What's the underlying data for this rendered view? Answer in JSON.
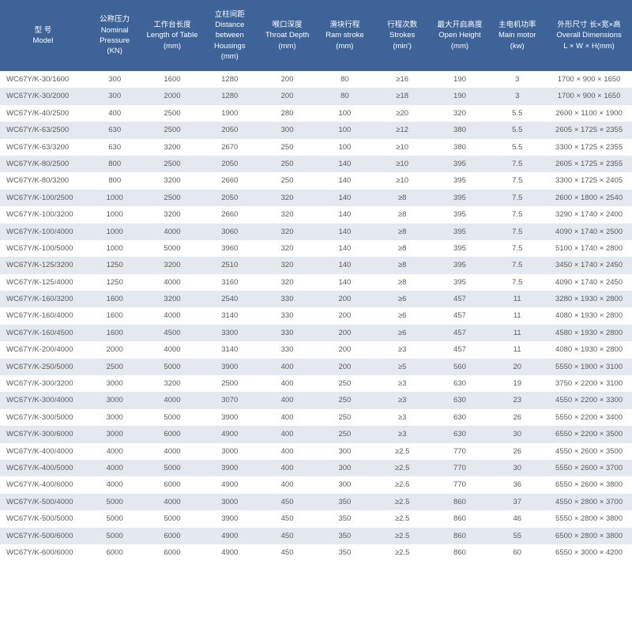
{
  "header_bg": "#3d6399",
  "header_fg": "#ffffff",
  "row_even_bg": "#ffffff",
  "row_odd_bg": "#e4e9ef",
  "cell_fg": "#5a5a5a",
  "font_size_pt": 9.5,
  "columns": [
    {
      "cn": "型 号",
      "en": "Model",
      "unit": ""
    },
    {
      "cn": "公称压力",
      "en": "Nominal Pressure",
      "unit": "(KN)"
    },
    {
      "cn": "工作台长度",
      "en": "Length of Table",
      "unit": "(mm)"
    },
    {
      "cn": "立柱间距",
      "en": "Distance between Housings",
      "unit": "(mm)"
    },
    {
      "cn": "喉口深度",
      "en": "Throat Depth",
      "unit": "(mm)"
    },
    {
      "cn": "滑块行程",
      "en": "Ram stroke",
      "unit": "(mm)"
    },
    {
      "cn": "行程次数",
      "en": "Strokes",
      "unit": "(min')"
    },
    {
      "cn": "最大开启高度",
      "en": "Open Height",
      "unit": "(mm)"
    },
    {
      "cn": "主电机功率",
      "en": "Main motor",
      "unit": "(kw)"
    },
    {
      "cn": "外形尺寸 长×宽×高",
      "en": "Overall Dimensions",
      "unit": "L × W × H(mm)"
    }
  ],
  "rows": [
    [
      "WC67Y/K-30/1600",
      "300",
      "1600",
      "1280",
      "200",
      "80",
      "≥16",
      "190",
      "3",
      "1700 × 900 × 1650"
    ],
    [
      "WC67Y/K-30/2000",
      "300",
      "2000",
      "1280",
      "200",
      "80",
      "≥18",
      "190",
      "3",
      "1700 × 900 × 1650"
    ],
    [
      "WC67Y/K-40/2500",
      "400",
      "2500",
      "1900",
      "280",
      "100",
      "≥20",
      "320",
      "5.5",
      "2600 × 1100 × 1900"
    ],
    [
      "WC67Y/K-63/2500",
      "630",
      "2500",
      "2050",
      "300",
      "100",
      "≥12",
      "380",
      "5.5",
      "2605 × 1725 × 2355"
    ],
    [
      "WC67Y/K-63/3200",
      "630",
      "3200",
      "2670",
      "250",
      "100",
      "≥10",
      "380",
      "5.5",
      "3300 × 1725 × 2355"
    ],
    [
      "WC67Y/K-80/2500",
      "800",
      "2500",
      "2050",
      "250",
      "140",
      "≥10",
      "395",
      "7.5",
      "2605 × 1725 × 2355"
    ],
    [
      "WC67Y/K-80/3200",
      "800",
      "3200",
      "2660",
      "250",
      "140",
      "≥10",
      "395",
      "7.5",
      "3300 × 1725 × 2405"
    ],
    [
      "WC67Y/K-100/2500",
      "1000",
      "2500",
      "2050",
      "320",
      "140",
      "≥8",
      "395",
      "7.5",
      "2600 × 1800 × 2540"
    ],
    [
      "WC67Y/K-100/3200",
      "1000",
      "3200",
      "2660",
      "320",
      "140",
      "≥8",
      "395",
      "7.5",
      "3290 × 1740 × 2400"
    ],
    [
      "WC67Y/K-100/4000",
      "1000",
      "4000",
      "3060",
      "320",
      "140",
      "≥8",
      "395",
      "7.5",
      "4090 × 1740 × 2500"
    ],
    [
      "WC67Y/K-100/5000",
      "1000",
      "5000",
      "3960",
      "320",
      "140",
      "≥8",
      "395",
      "7.5",
      "5100 × 1740 × 2800"
    ],
    [
      "WC67Y/K-125/3200",
      "1250",
      "3200",
      "2510",
      "320",
      "140",
      "≥8",
      "395",
      "7.5",
      "3450 × 1740 × 2450"
    ],
    [
      "WC67Y/K-125/4000",
      "1250",
      "4000",
      "3160",
      "320",
      "140",
      "≥8",
      "395",
      "7.5",
      "4090 × 1740 × 2450"
    ],
    [
      "WC67Y/K-160/3200",
      "1600",
      "3200",
      "2540",
      "330",
      "200",
      "≥6",
      "457",
      "11",
      "3280 × 1930 × 2800"
    ],
    [
      "WC67Y/K-160/4000",
      "1600",
      "4000",
      "3140",
      "330",
      "200",
      "≥6",
      "457",
      "11",
      "4080 × 1930 × 2800"
    ],
    [
      "WC67Y/K-160/4500",
      "1600",
      "4500",
      "3300",
      "330",
      "200",
      "≥6",
      "457",
      "11",
      "4580 × 1930 × 2800"
    ],
    [
      "WC67Y/K-200/4000",
      "2000",
      "4000",
      "3140",
      "330",
      "200",
      "≥3",
      "457",
      "11",
      "4080 × 1930 × 2800"
    ],
    [
      "WC67Y/K-250/5000",
      "2500",
      "5000",
      "3900",
      "400",
      "200",
      "≥5",
      "560",
      "20",
      "5550 × 1900 × 3100"
    ],
    [
      "WC67Y/K-300/3200",
      "3000",
      "3200",
      "2500",
      "400",
      "250",
      "≥3",
      "630",
      "19",
      "3750 × 2200 × 3100"
    ],
    [
      "WC67Y/K-300/4000",
      "3000",
      "4000",
      "3070",
      "400",
      "250",
      "≥3",
      "630",
      "23",
      "4550 × 2200 × 3300"
    ],
    [
      "WC67Y/K-300/5000",
      "3000",
      "5000",
      "3900",
      "400",
      "250",
      "≥3",
      "630",
      "26",
      "5550 × 2200 × 3400"
    ],
    [
      "WC67Y/K-300/6000",
      "3000",
      "6000",
      "4900",
      "400",
      "250",
      "≥3",
      "630",
      "30",
      "6550 × 2200 × 3500"
    ],
    [
      "WC67Y/K-400/4000",
      "4000",
      "4000",
      "3000",
      "400",
      "300",
      "≥2.5",
      "770",
      "26",
      "4550 × 2600 × 3500"
    ],
    [
      "WC67Y/K-400/5000",
      "4000",
      "5000",
      "3900",
      "400",
      "300",
      "≥2.5",
      "770",
      "30",
      "5550 × 2600 × 3700"
    ],
    [
      "WC67Y/K-400/6000",
      "4000",
      "6000",
      "4900",
      "400",
      "300",
      "≥2.5",
      "770",
      "36",
      "6550 × 2600 × 3800"
    ],
    [
      "WC67Y/K-500/4000",
      "5000",
      "4000",
      "3000",
      "450",
      "350",
      "≥2.5",
      "860",
      "37",
      "4550 × 2800 × 3700"
    ],
    [
      "WC67Y/K-500/5000",
      "5000",
      "5000",
      "3900",
      "450",
      "350",
      "≥2.5",
      "860",
      "46",
      "5550 × 2800 × 3800"
    ],
    [
      "WC67Y/K-500/6000",
      "5000",
      "6000",
      "4900",
      "450",
      "350",
      "≥2.5",
      "860",
      "55",
      "6500 × 2800 × 3800"
    ],
    [
      "WC67Y/K-600/6000",
      "6000",
      "6000",
      "4900",
      "450",
      "350",
      "≥2.5",
      "860",
      "60",
      "6550 × 3000 × 4200"
    ]
  ]
}
